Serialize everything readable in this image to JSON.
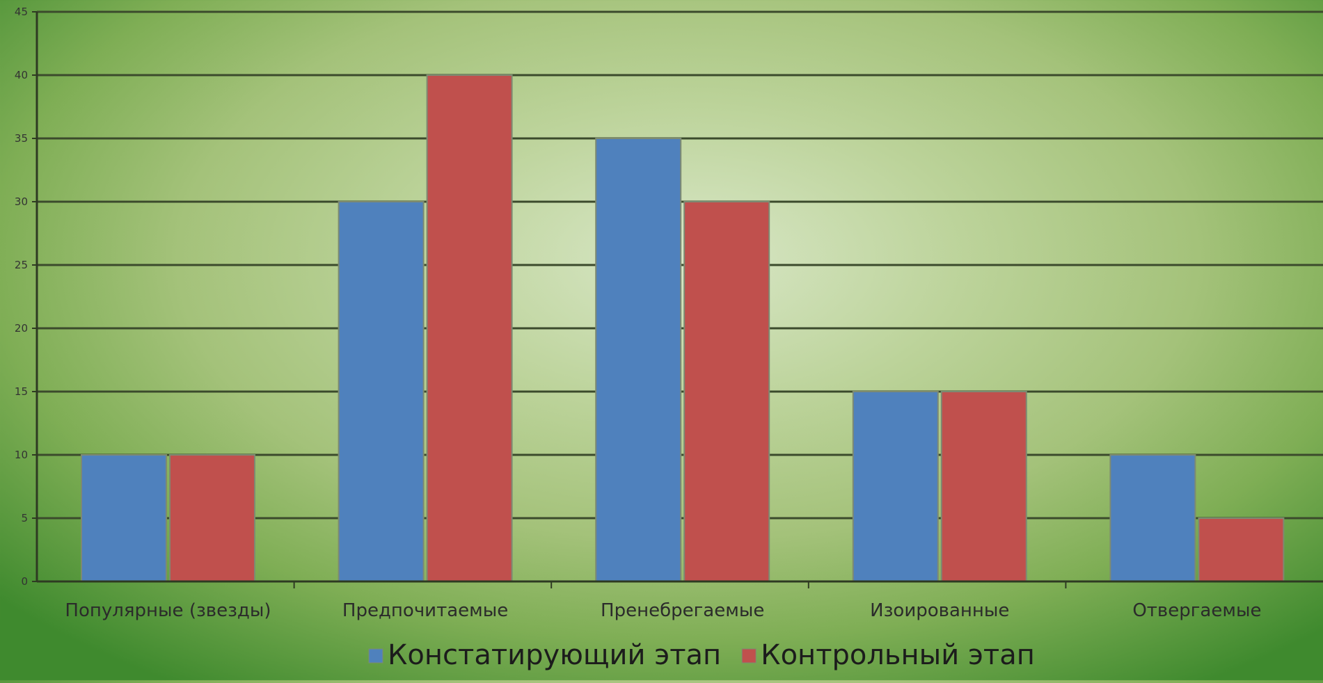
{
  "chart_data": {
    "type": "bar",
    "categories": [
      "Популярные (звезды)",
      "Предпочитаемые",
      "Пренебрегаемые",
      "Изоированные",
      "Отвергаемые"
    ],
    "series": [
      {
        "name": "Констатирующий этап",
        "values": [
          10,
          30,
          35,
          15,
          10
        ],
        "color": "#4f81bd"
      },
      {
        "name": "Контрольный этап",
        "values": [
          10,
          40,
          30,
          15,
          5
        ],
        "color": "#c0504d"
      }
    ],
    "ylim": [
      0,
      45
    ],
    "yticks": [
      0,
      5,
      10,
      15,
      20,
      25,
      30,
      35,
      40,
      45
    ],
    "grid": true,
    "legend_position": "bottom"
  }
}
